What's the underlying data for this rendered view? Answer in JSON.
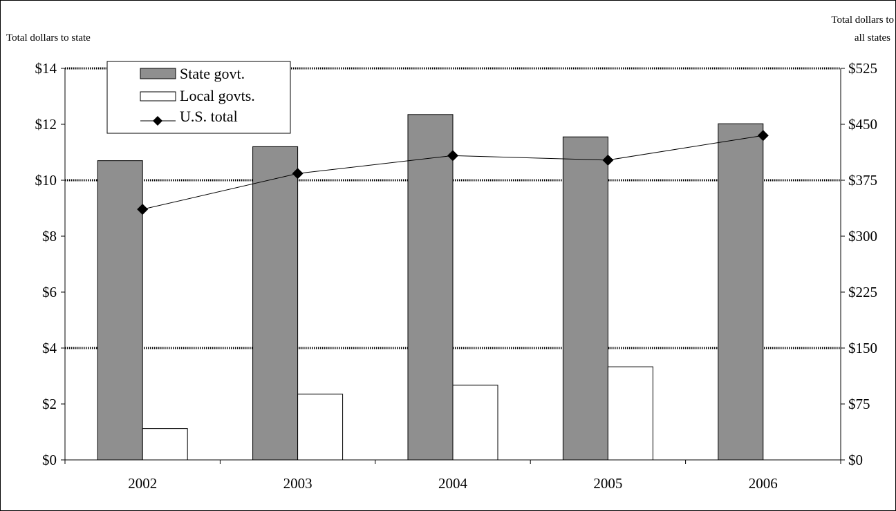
{
  "chart_data": {
    "type": "bar",
    "categories": [
      "2002",
      "2003",
      "2004",
      "2005",
      "2006"
    ],
    "series": [
      {
        "name": "State govt.",
        "kind": "bar",
        "axis": "left",
        "color": "#8f8f8f",
        "values": [
          10.7,
          11.2,
          12.35,
          11.55,
          12.02
        ]
      },
      {
        "name": "Local govts.",
        "kind": "bar",
        "axis": "left",
        "color": "#ffffff",
        "values": [
          1.12,
          2.35,
          2.67,
          3.33,
          0
        ]
      },
      {
        "name": "U.S. total",
        "kind": "line",
        "axis": "right",
        "color": "#000000",
        "marker": "diamond",
        "values": [
          336,
          384,
          408,
          402,
          435
        ]
      }
    ],
    "title": "",
    "xlabel": "",
    "ylabel_left": "Total dollars to state",
    "ylabel_right_lines": [
      "Total dollars to",
      "all states"
    ],
    "ylim_left": [
      0,
      14
    ],
    "yticks_left": [
      "$0",
      "$2",
      "$4",
      "$6",
      "$8",
      "$10",
      "$12",
      "$14"
    ],
    "ylim_right": [
      0,
      525
    ],
    "yticks_right": [
      "$0",
      "$75",
      "$150",
      "$225",
      "$300",
      "$375",
      "$450",
      "$525"
    ],
    "gridlines": [
      4,
      10,
      14
    ],
    "legend_position": "top-left"
  }
}
